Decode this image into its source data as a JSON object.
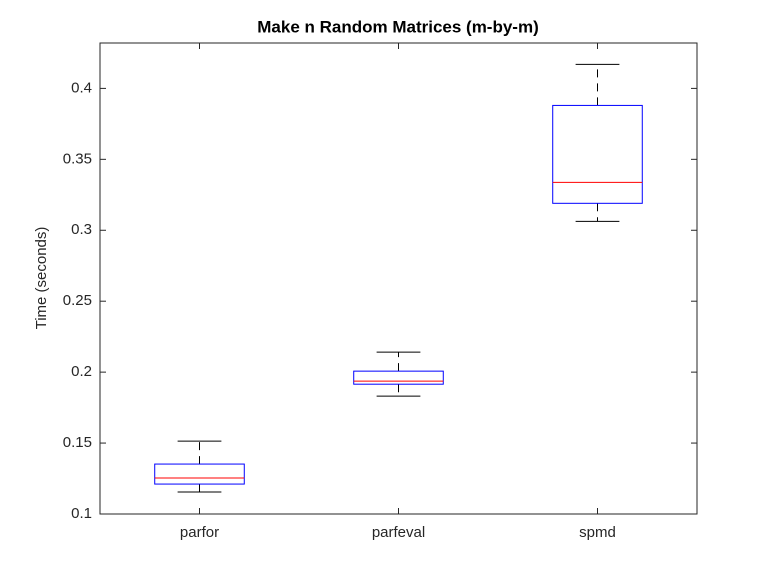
{
  "chart_data": {
    "type": "box",
    "title": "Make n Random Matrices (m-by-m)",
    "y_label": "Time (seconds)",
    "categories": [
      "parfor",
      "parfeval",
      "spmd"
    ],
    "whisker_low": [
      0.1155,
      0.1831,
      0.3063
    ],
    "q1": [
      0.1211,
      0.1915,
      0.319
    ],
    "median": [
      0.1254,
      0.1937,
      0.3338
    ],
    "q3": [
      0.1352,
      0.2007,
      0.388
    ],
    "whisker_high": [
      0.1514,
      0.2141,
      0.4169
    ],
    "box_color": "#0000ff",
    "median_color": "#ff0000",
    "whisker_color": "#000000",
    "ylim": [
      0.1,
      0.432
    ],
    "yticks": [
      0.1,
      0.15,
      0.2,
      0.25,
      0.3,
      0.35,
      0.4
    ]
  }
}
